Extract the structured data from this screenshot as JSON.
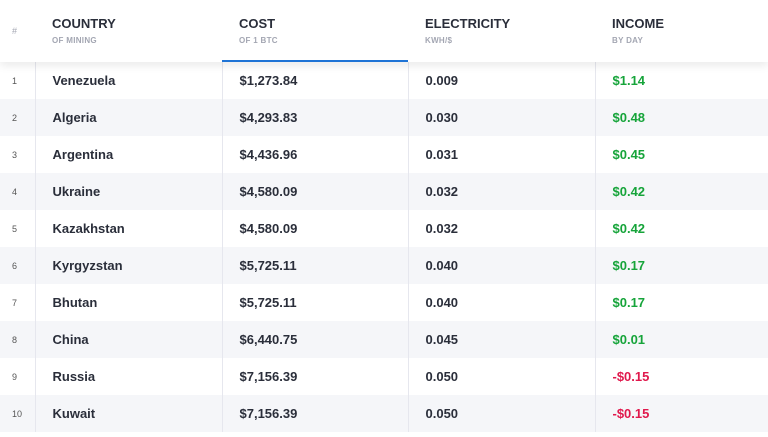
{
  "header": {
    "columns": [
      {
        "title": "#"
      },
      {
        "title": "COUNTRY",
        "subtitle": "OF MINING"
      },
      {
        "title": "COST",
        "subtitle": "OF 1 BTC"
      },
      {
        "title": "ELECTRICITY",
        "subtitle": "KWH/$"
      },
      {
        "title": "INCOME",
        "subtitle": "BY DAY"
      }
    ]
  },
  "table": {
    "rows": [
      [
        "1",
        "Venezuela",
        "$1,273.84",
        "0.009",
        "$1.14"
      ],
      [
        "2",
        "Algeria",
        "$4,293.83",
        "0.030",
        "$0.48"
      ],
      [
        "3",
        "Argentina",
        "$4,436.96",
        "0.031",
        "$0.45"
      ],
      [
        "4",
        "Ukraine",
        "$4,580.09",
        "0.032",
        "$0.42"
      ],
      [
        "5",
        "Kazakhstan",
        "$4,580.09",
        "0.032",
        "$0.42"
      ],
      [
        "6",
        "Kyrgyzstan",
        "$5,725.11",
        "0.040",
        "$0.17"
      ],
      [
        "7",
        "Bhutan",
        "$5,725.11",
        "0.040",
        "$0.17"
      ],
      [
        "8",
        "China",
        "$6,440.75",
        "0.045",
        "$0.01"
      ],
      [
        "9",
        "Russia",
        "$7,156.39",
        "0.050",
        "-$0.15"
      ],
      [
        "10",
        "Kuwait",
        "$7,156.39",
        "0.050",
        "-$0.15"
      ]
    ]
  }
}
